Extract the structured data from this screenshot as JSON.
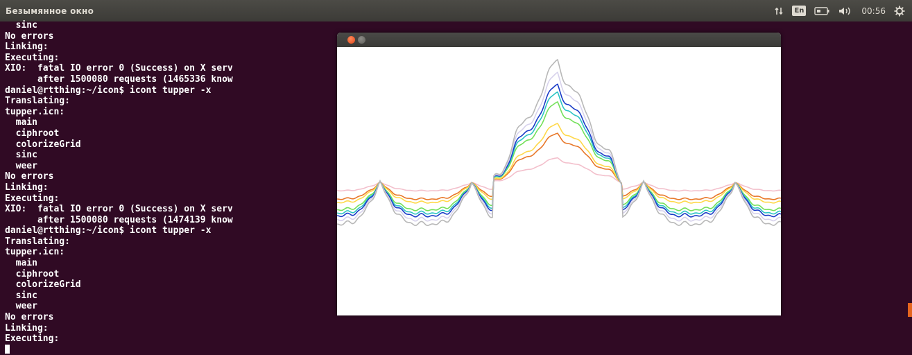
{
  "topbar": {
    "window_title": "Безымянное окно",
    "indicators": {
      "network_icon": "network-arrows-icon",
      "keyboard_layout": "En",
      "battery_icon": "battery-icon",
      "volume_icon": "volume-icon",
      "clock": "00:56",
      "settings_icon": "gear-icon"
    }
  },
  "terminal": {
    "lines": [
      "  sinc",
      "No errors",
      "Linking:",
      "Executing:",
      "XIO:  fatal IO error 0 (Success) on X serv",
      "      after 1500080 requests (1465336 know",
      "daniel@rtthing:~/icon$ icont tupper -x",
      "Translating:",
      "tupper.icn:",
      "  main",
      "  ciphroot",
      "  colorizeGrid",
      "  sinc",
      "  weer",
      "No errors",
      "Linking:",
      "Executing:",
      "XIO:  fatal IO error 0 (Success) on X serv",
      "      after 1500080 requests (1474139 know",
      "daniel@rtthing:~/icon$ icont tupper -x",
      "Translating:",
      "tupper.icn:",
      "  main",
      "  ciphroot",
      "  colorizeGrid",
      "  sinc",
      "  weer",
      "No errors",
      "Linking:",
      "Executing:"
    ]
  },
  "graphics_window": {
    "close_button": "close-icon",
    "minimize_button": "minimize-icon",
    "series_colors": [
      "#f3c0cc",
      "#e8782a",
      "#ffd84a",
      "#74e05a",
      "#2dc4c4",
      "#1a3cc8",
      "#d7d2ec",
      "#b8b8b8"
    ],
    "series_amplitudes": [
      0.25,
      0.5,
      0.6,
      0.82,
      0.92,
      1.0,
      1.12,
      1.25
    ]
  }
}
